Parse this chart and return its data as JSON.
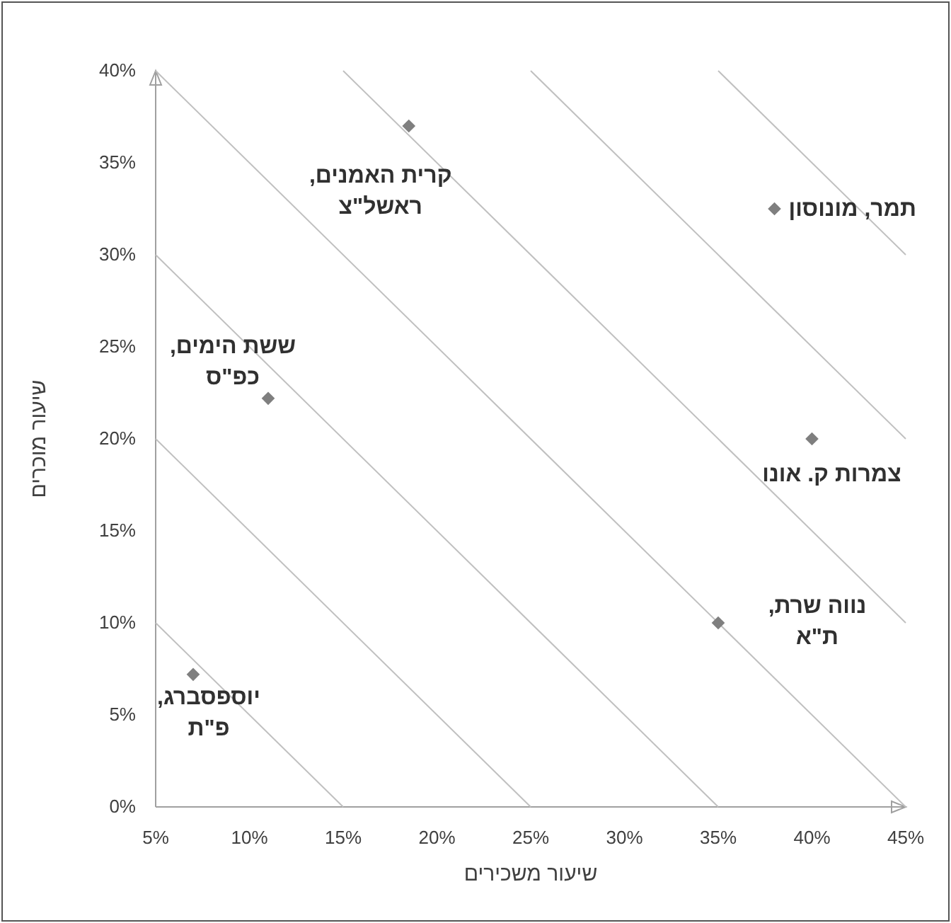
{
  "chart_data": {
    "type": "scatter",
    "xlabel": "שיעור משכירים",
    "ylabel": "שיעור מוכרים",
    "xlim": [
      5,
      45
    ],
    "ylim": [
      0,
      40
    ],
    "xticks": [
      {
        "value": 5,
        "label": "5%"
      },
      {
        "value": 10,
        "label": "10%"
      },
      {
        "value": 15,
        "label": "15%"
      },
      {
        "value": 20,
        "label": "20%"
      },
      {
        "value": 25,
        "label": "25%"
      },
      {
        "value": 30,
        "label": "30%"
      },
      {
        "value": 35,
        "label": "35%"
      },
      {
        "value": 40,
        "label": "40%"
      },
      {
        "value": 45,
        "label": "45%"
      }
    ],
    "yticks": [
      {
        "value": 0,
        "label": "0%"
      },
      {
        "value": 5,
        "label": "5%"
      },
      {
        "value": 10,
        "label": "10%"
      },
      {
        "value": 15,
        "label": "15%"
      },
      {
        "value": 20,
        "label": "20%"
      },
      {
        "value": 25,
        "label": "25%"
      },
      {
        "value": 30,
        "label": "30%"
      },
      {
        "value": 35,
        "label": "35%"
      },
      {
        "value": 40,
        "label": "40%"
      }
    ],
    "series": [
      {
        "type": "line",
        "color": "#c0c0c0",
        "x": [
          5,
          15
        ],
        "values": [
          10,
          0
        ]
      },
      {
        "type": "line",
        "color": "#c0c0c0",
        "x": [
          5,
          25
        ],
        "values": [
          20,
          0
        ]
      },
      {
        "type": "line",
        "color": "#c0c0c0",
        "x": [
          5,
          35
        ],
        "values": [
          30,
          0
        ]
      },
      {
        "type": "line",
        "color": "#c0c0c0",
        "x": [
          5,
          45
        ],
        "values": [
          40,
          0
        ]
      },
      {
        "type": "line",
        "color": "#c0c0c0",
        "x": [
          15,
          45
        ],
        "values": [
          40,
          10
        ]
      },
      {
        "type": "line",
        "color": "#c0c0c0",
        "x": [
          25,
          45
        ],
        "values": [
          40,
          20
        ]
      },
      {
        "type": "line",
        "color": "#c0c0c0",
        "x": [
          35,
          45
        ],
        "values": [
          40,
          30
        ]
      },
      {
        "color": "#7f7f7f",
        "marker": "diamond",
        "x": [
          18.5,
          38,
          40,
          35,
          11,
          7
        ],
        "values": [
          37,
          32.5,
          20,
          10,
          22.2,
          7.2
        ]
      }
    ],
    "annotations": [
      {
        "text": "קרית האמנים,\nראשל\"צ",
        "x": 18.5,
        "y": 37
      },
      {
        "text": "תמר, מונוסון",
        "x": 38,
        "y": 32.5
      },
      {
        "text": "צמרות ק. אונו",
        "x": 40,
        "y": 20
      },
      {
        "text": "נווה שרת,\nת\"א",
        "x": 35,
        "y": 10
      },
      {
        "text": "ששת הימים,\nכפ\"ס",
        "x": 11,
        "y": 22.2
      },
      {
        "text": "יוספסברג,\nפ\"ת",
        "x": 7,
        "y": 7.2
      }
    ]
  }
}
